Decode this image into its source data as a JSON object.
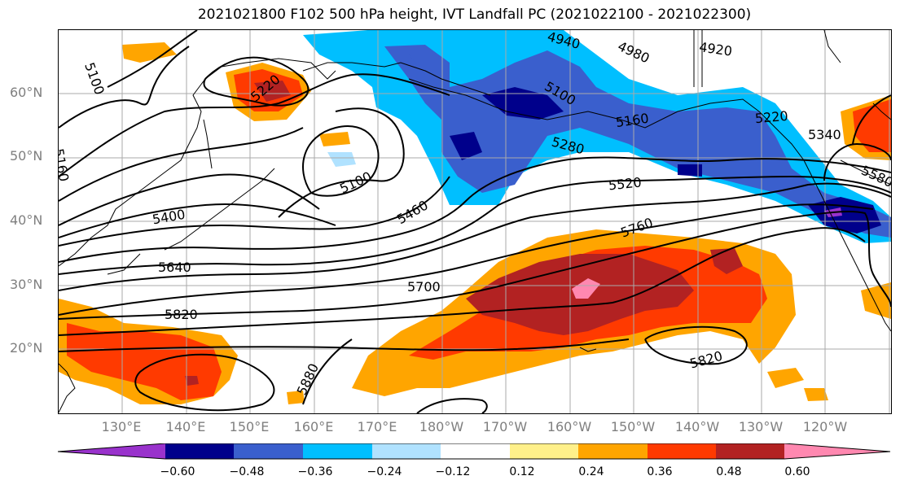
{
  "title": "2021021800 F102 500 hPa height, IVT Landfall PC (2021022100 - 2021022300)",
  "lat_labels": [
    "60°N",
    "50°N",
    "40°N",
    "30°N",
    "20°N"
  ],
  "lon_labels": [
    "130°E",
    "140°E",
    "150°E",
    "160°E",
    "170°E",
    "180°W",
    "170°W",
    "160°W",
    "150°W",
    "140°W",
    "130°W",
    "120°W"
  ],
  "colorbar": {
    "colors": [
      "#9932cc",
      "#00008b",
      "#3a5fcd",
      "#00bfff",
      "#b0e2ff",
      "#ffffff",
      "#fff08a",
      "#ffa500",
      "#ff3a00",
      "#b22222",
      "#ff88b0"
    ],
    "tick_labels": [
      "−0.60",
      "−0.48",
      "−0.36",
      "−0.24",
      "−0.12",
      "0.12",
      "0.24",
      "0.36",
      "0.48",
      "0.60"
    ]
  },
  "contour_labels": {
    "c5100a": "5100",
    "c5160a": "5160",
    "c5220a": "5220",
    "c4980": "4980",
    "c4920": "4920",
    "c5100b": "5100",
    "c5160b": "5160",
    "c5280": "5280",
    "c5220b": "5220",
    "c5340": "5340",
    "c5580": "5580",
    "c5100c": "5100",
    "c5460": "5460",
    "c5520": "5520",
    "c5400": "5400",
    "c5760": "5760",
    "c5640": "5640",
    "c5700": "5700",
    "c5820a": "5820",
    "c5820b": "5820",
    "c5880": "5880",
    "c4940": "4940"
  }
}
